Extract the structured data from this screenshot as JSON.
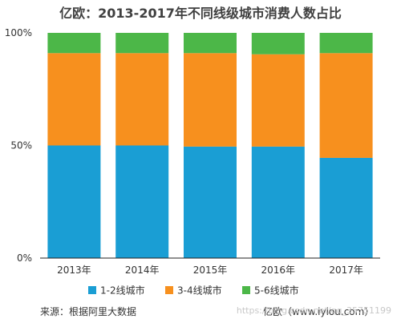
{
  "chart_data": {
    "type": "bar",
    "stacked": true,
    "title": "亿欧：2013-2017年不同线级城市消费人数占比",
    "categories": [
      "2013年",
      "2014年",
      "2015年",
      "2016年",
      "2017年"
    ],
    "ylim": [
      0,
      100
    ],
    "y_ticks": [
      "0%",
      "50%",
      "100%"
    ],
    "series": [
      {
        "name": "1-2线城市",
        "values": [
          50,
          50,
          49.5,
          49.5,
          44.5
        ]
      },
      {
        "name": "3-4线城市",
        "values": [
          41,
          41,
          41.5,
          41,
          46.5
        ]
      },
      {
        "name": "5-6线城市",
        "values": [
          9,
          9,
          9,
          9.5,
          9
        ]
      }
    ],
    "colors": [
      "#1a9ed4",
      "#f7901e",
      "#4cb748"
    ],
    "legend_position": "bottom",
    "grid": false
  },
  "footer": {
    "source": "来源：根据阿里大数据",
    "brand": "亿欧（www.iyiou.com）"
  },
  "watermark": "https://blog.csdn.net/qq_35751199"
}
